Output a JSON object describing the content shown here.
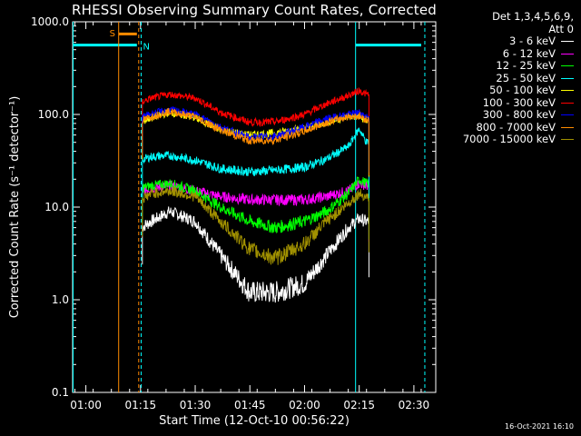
{
  "title": "RHESSI Observing Summary Count Rates, Corrected",
  "detectors": "Det 1,3,4,5,6,9,",
  "attenuator": "Att 0",
  "timestamp": "16-Oct-2021 16:10",
  "chart_data": {
    "type": "line",
    "title": "RHESSI Observing Summary Count Rates, Corrected",
    "xlabel": "Start Time (12-Oct-10 00:56:22)",
    "ylabel": "Corrected Count Rate (s⁻¹ detector⁻¹)",
    "ylog": true,
    "ylim": [
      0.1,
      1000
    ],
    "xlim": [
      "00:56:22",
      "02:36:00"
    ],
    "x_ticks": [
      "01:00",
      "01:15",
      "01:30",
      "01:45",
      "02:00",
      "02:15",
      "02:30"
    ],
    "y_ticks": [
      "0.1",
      "1.0",
      "10.0",
      "100.0",
      "1000.0"
    ],
    "x": [
      "01:15",
      "01:18",
      "01:23",
      "01:30",
      "01:37",
      "01:45",
      "01:52",
      "02:00",
      "02:06",
      "02:12",
      "02:15",
      "02:17"
    ],
    "series": [
      {
        "name": "3 - 6 keV",
        "color": "#ffffff",
        "values": [
          6,
          7,
          9,
          7,
          3,
          1.2,
          1.2,
          1.5,
          3,
          6,
          7.5,
          7
        ]
      },
      {
        "name": "6 - 12 keV",
        "color": "#ff00ff",
        "values": [
          15,
          16,
          17,
          15,
          13,
          12,
          12,
          12,
          13,
          15,
          18,
          17
        ]
      },
      {
        "name": "12 - 25 keV",
        "color": "#00ff00",
        "values": [
          16,
          17,
          18,
          15,
          10,
          7,
          6,
          7,
          9,
          14,
          20,
          18
        ]
      },
      {
        "name": "25 - 50 keV",
        "color": "#00ffff",
        "values": [
          32,
          35,
          36,
          32,
          26,
          24,
          25,
          27,
          33,
          45,
          70,
          50
        ]
      },
      {
        "name": "50 - 100 keV",
        "color": "#ffff00",
        "values": [
          82,
          92,
          105,
          92,
          68,
          60,
          63,
          72,
          82,
          95,
          95,
          85
        ]
      },
      {
        "name": "100 - 300 keV",
        "color": "#ff0000",
        "values": [
          135,
          150,
          165,
          150,
          105,
          82,
          83,
          100,
          130,
          160,
          180,
          165
        ]
      },
      {
        "name": "300 - 800 keV",
        "color": "#0000ff",
        "values": [
          92,
          102,
          112,
          100,
          73,
          56,
          58,
          73,
          90,
          100,
          105,
          95
        ]
      },
      {
        "name": "800 - 7000 keV",
        "color": "#ff8c00",
        "values": [
          84,
          95,
          108,
          94,
          68,
          52,
          53,
          66,
          82,
          95,
          96,
          88
        ]
      },
      {
        "name": "7000 - 15000 keV",
        "color": "#a09000",
        "values": [
          12,
          14,
          15,
          13,
          7,
          3.5,
          2.8,
          4,
          7,
          11,
          14,
          13
        ]
      }
    ],
    "flags": [
      {
        "label": "S",
        "color": "#ff8c00",
        "x_start": "01:09",
        "x_end": "01:14"
      },
      {
        "label": "N",
        "color": "#00ffff"
      }
    ]
  }
}
